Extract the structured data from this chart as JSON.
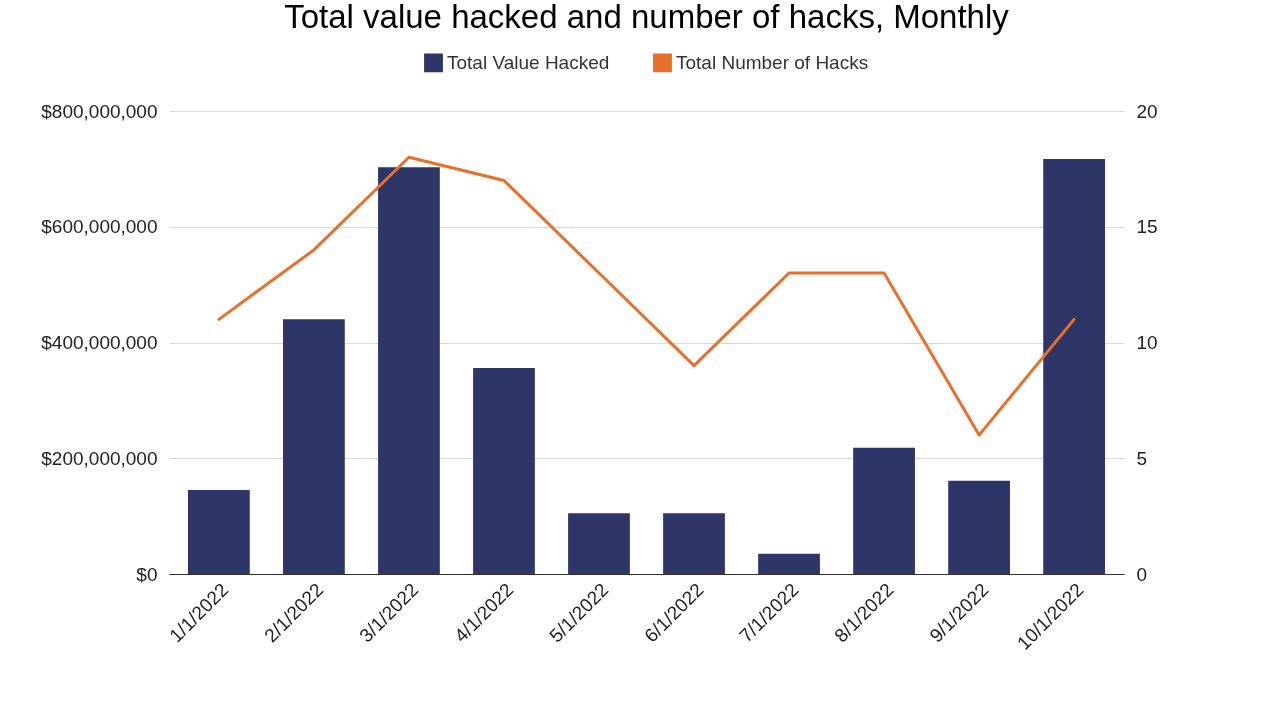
{
  "chart_data": {
    "type": "bar",
    "title": "Total value hacked and number of hacks, Monthly",
    "categories": [
      "1/1/2022",
      "2/1/2022",
      "3/1/2022",
      "4/1/2022",
      "5/1/2022",
      "6/1/2022",
      "7/1/2022",
      "8/1/2022",
      "9/1/2022",
      "10/1/2022"
    ],
    "series": [
      {
        "name": "Total Value Hacked",
        "color": "#2e3567",
        "values": [
          145000000,
          440000000,
          703000000,
          356000000,
          105000000,
          105000000,
          35000000,
          218000000,
          161000000,
          717000000
        ]
      },
      {
        "name": "Total Number of Hacks",
        "type": "line",
        "axis": "y2",
        "color": "#e8702a",
        "values": [
          11,
          14,
          18,
          17,
          13,
          9,
          13,
          13,
          6,
          11
        ]
      }
    ],
    "ylim": [
      0,
      800000000
    ],
    "yticks": [
      {
        "value": 0,
        "label": "$0"
      },
      {
        "value": 200000000,
        "label": "$200,000,000"
      },
      {
        "value": 400000000,
        "label": "$400,000,000"
      },
      {
        "value": 600000000,
        "label": "$600,000,000"
      },
      {
        "value": 800000000,
        "label": "$800,000,000"
      }
    ],
    "y2lim": [
      0,
      20
    ],
    "y2ticks": [
      0,
      5,
      10,
      15,
      20
    ],
    "grid": "y",
    "legend": "top"
  }
}
